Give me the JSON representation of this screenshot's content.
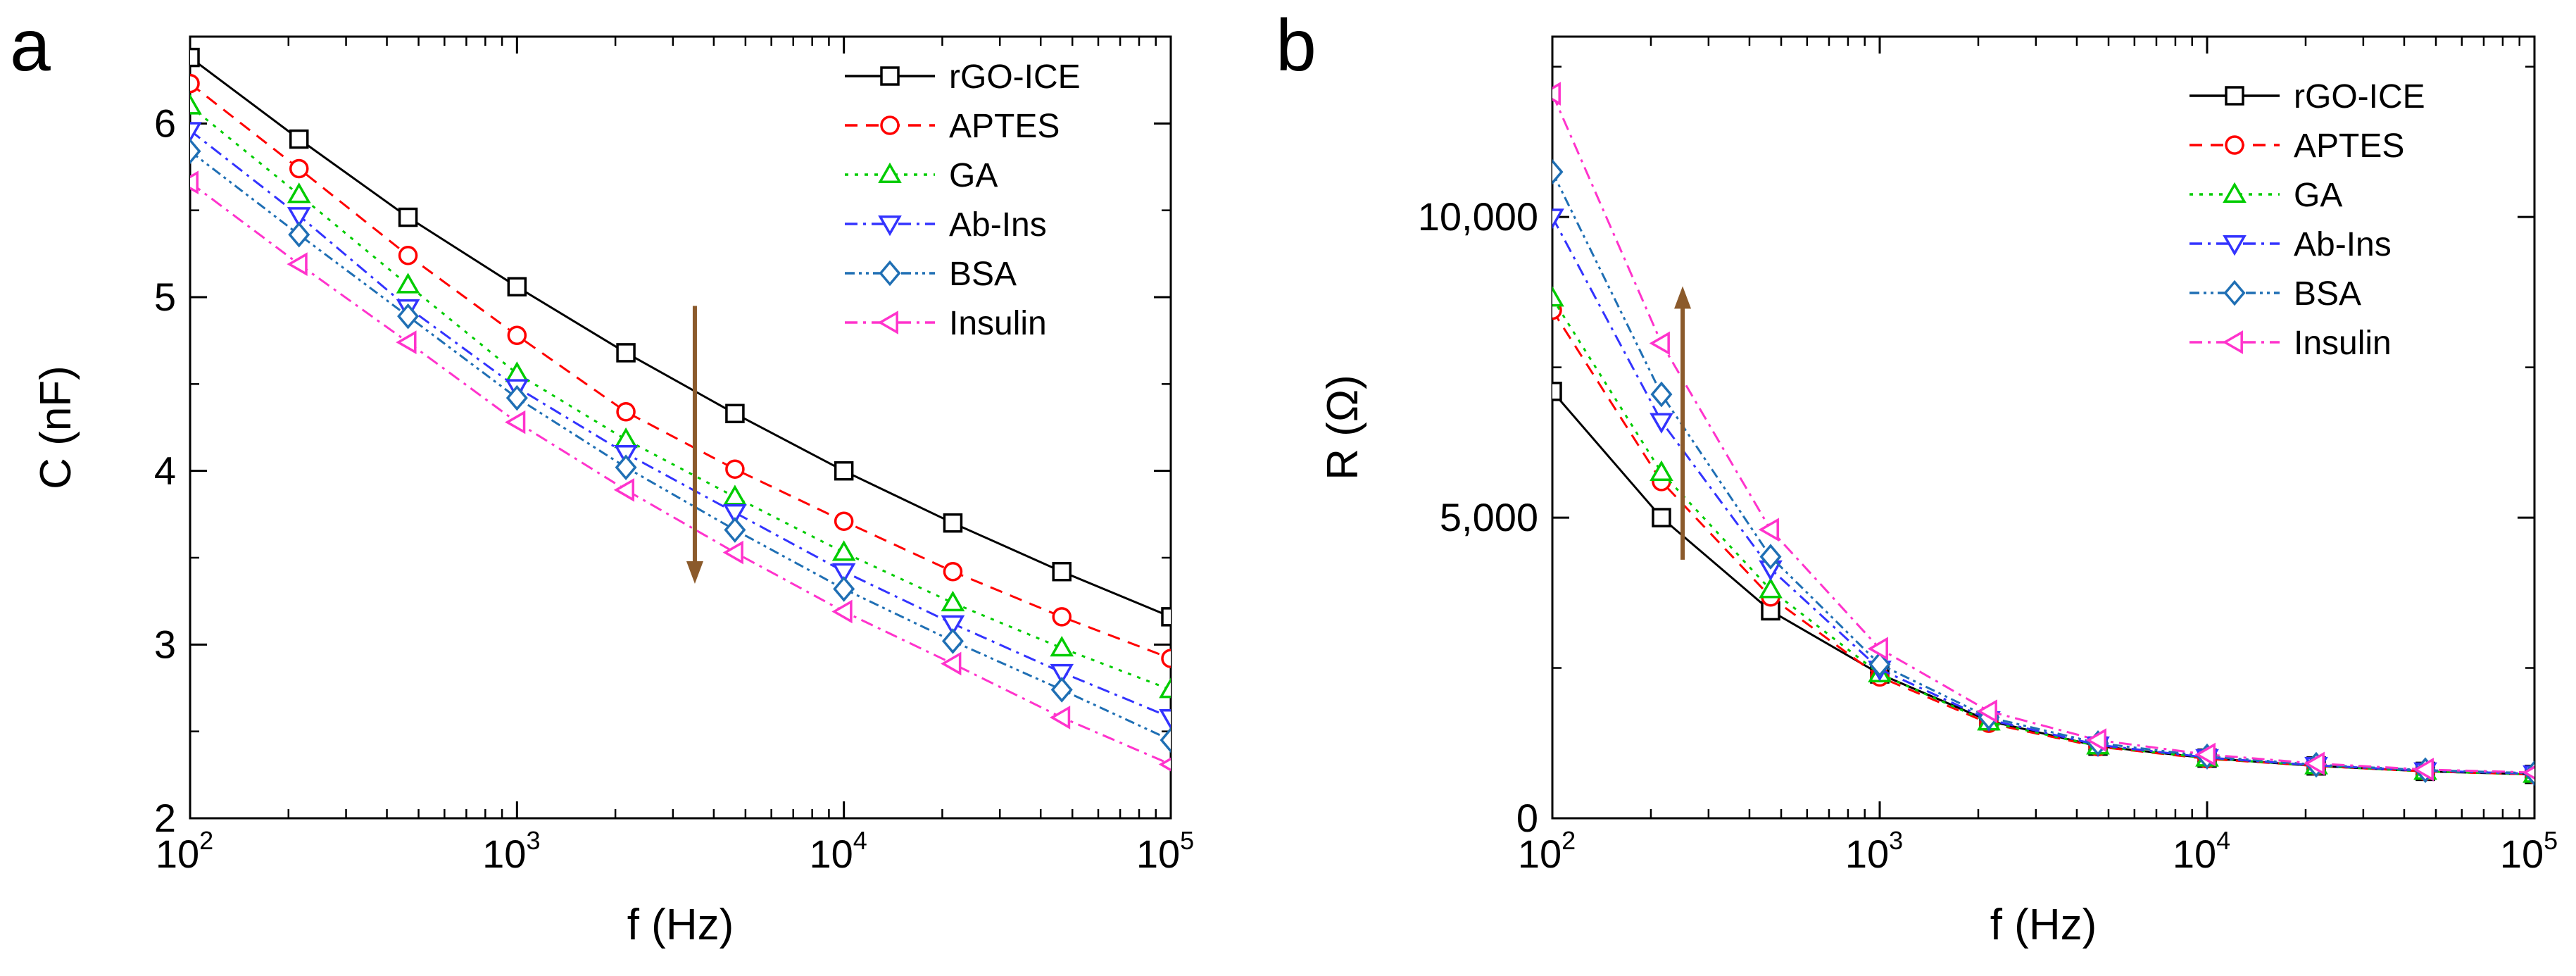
{
  "chart_data": [
    {
      "panel": "a",
      "type": "line",
      "xscale": "log",
      "xlabel": "f (Hz)",
      "ylabel": "C (nF)",
      "xlim": [
        100,
        100000
      ],
      "ylim": [
        2,
        6.5
      ],
      "xticks": [
        {
          "value": 100,
          "base": "10",
          "exp": "2"
        },
        {
          "value": 1000,
          "base": "10",
          "exp": "3"
        },
        {
          "value": 10000,
          "base": "10",
          "exp": "4"
        },
        {
          "value": 100000,
          "base": "10",
          "exp": "5"
        }
      ],
      "yticks": [
        {
          "value": 2,
          "label": "2"
        },
        {
          "value": 3,
          "label": "3"
        },
        {
          "value": 4,
          "label": "4"
        },
        {
          "value": 5,
          "label": "5"
        },
        {
          "value": 6,
          "label": "6"
        }
      ],
      "x": [
        100,
        215.4,
        464.2,
        1000,
        2154,
        4642,
        10000,
        21544,
        46416,
        100000
      ],
      "series": [
        {
          "name": "rGO-ICE",
          "color": "#000000",
          "marker": "square",
          "dash": "",
          "values": [
            6.38,
            5.91,
            5.46,
            5.06,
            4.68,
            4.33,
            4.0,
            3.7,
            3.42,
            3.16
          ]
        },
        {
          "name": "APTES",
          "color": "#ff0000",
          "marker": "circle",
          "dash": "18,12",
          "values": [
            6.23,
            5.74,
            5.24,
            4.78,
            4.34,
            4.01,
            3.71,
            3.42,
            3.16,
            2.92
          ]
        },
        {
          "name": "GA",
          "color": "#00cc00",
          "marker": "triangle-up",
          "dash": "5,9",
          "values": [
            6.1,
            5.59,
            5.07,
            4.56,
            4.18,
            3.85,
            3.53,
            3.24,
            2.98,
            2.74
          ]
        },
        {
          "name": "Ab-Ins",
          "color": "#3333ff",
          "marker": "triangle-down",
          "dash": "18,8,4,8",
          "values": [
            5.96,
            5.47,
            4.94,
            4.48,
            4.1,
            3.76,
            3.42,
            3.12,
            2.84,
            2.58
          ]
        },
        {
          "name": "BSA",
          "color": "#1f6fb4",
          "marker": "diamond",
          "dash": "14,6,4,6,4,6",
          "values": [
            5.84,
            5.36,
            4.89,
            4.42,
            4.02,
            3.66,
            3.32,
            3.02,
            2.74,
            2.45
          ]
        },
        {
          "name": "Insulin",
          "color": "#ff33cc",
          "marker": "triangle-left",
          "dash": "18,8,4,8",
          "values": [
            5.66,
            5.19,
            4.74,
            4.28,
            3.89,
            3.53,
            3.19,
            2.89,
            2.58,
            2.31
          ]
        }
      ],
      "arrow": {
        "direction": "down",
        "x": 3500,
        "y_from": 4.95,
        "y_to": 3.35,
        "color": "#8b5a2b"
      }
    },
    {
      "panel": "b",
      "type": "line",
      "xscale": "log",
      "xlabel": "f (Hz)",
      "ylabel": "R (Ω)",
      "xlim": [
        100,
        100000
      ],
      "ylim": [
        0,
        13000
      ],
      "xticks": [
        {
          "value": 100,
          "base": "10",
          "exp": "2"
        },
        {
          "value": 1000,
          "base": "10",
          "exp": "3"
        },
        {
          "value": 10000,
          "base": "10",
          "exp": "4"
        },
        {
          "value": 100000,
          "base": "10",
          "exp": "5"
        }
      ],
      "yticks": [
        {
          "value": 0,
          "label": "0"
        },
        {
          "value": 5000,
          "label": "5,000"
        },
        {
          "value": 10000,
          "label": "10,000"
        }
      ],
      "x": [
        100,
        215.4,
        464.2,
        1000,
        2154,
        4642,
        10000,
        21544,
        46416,
        100000
      ],
      "series": [
        {
          "name": "rGO-ICE",
          "color": "#000000",
          "marker": "square",
          "dash": "",
          "values": [
            7100,
            5000,
            3450,
            2400,
            1620,
            1200,
            1000,
            870,
            780,
            730
          ]
        },
        {
          "name": "APTES",
          "color": "#ff0000",
          "marker": "circle",
          "dash": "18,12",
          "values": [
            8450,
            5600,
            3680,
            2350,
            1580,
            1190,
            990,
            870,
            780,
            730
          ]
        },
        {
          "name": "GA",
          "color": "#00cc00",
          "marker": "triangle-up",
          "dash": "5,9",
          "values": [
            8650,
            5750,
            3800,
            2400,
            1600,
            1200,
            1000,
            870,
            780,
            730
          ]
        },
        {
          "name": "Ab-Ins",
          "color": "#3333ff",
          "marker": "triangle-down",
          "dash": "18,8,4,8",
          "values": [
            10000,
            6600,
            4150,
            2480,
            1640,
            1220,
            1010,
            880,
            790,
            740
          ]
        },
        {
          "name": "BSA",
          "color": "#1f6fb4",
          "marker": "diamond",
          "dash": "14,6,4,6,4,6",
          "values": [
            10750,
            7050,
            4350,
            2560,
            1680,
            1250,
            1030,
            890,
            800,
            750
          ]
        },
        {
          "name": "Insulin",
          "color": "#ff33cc",
          "marker": "triangle-left",
          "dash": "18,8,4,8",
          "values": [
            12050,
            7900,
            4800,
            2820,
            1780,
            1300,
            1060,
            910,
            810,
            760
          ]
        }
      ],
      "arrow": {
        "direction": "up",
        "x": 250,
        "y_from": 4300,
        "y_to": 8850,
        "color": "#8b5a2b"
      }
    }
  ]
}
